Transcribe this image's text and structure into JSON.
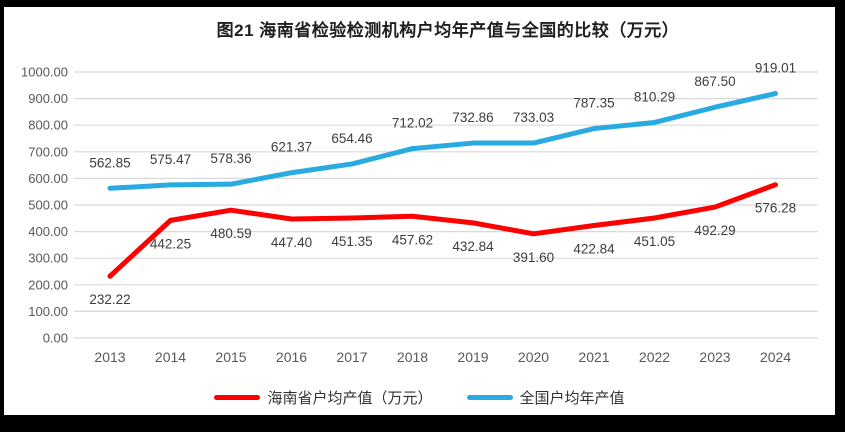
{
  "frame": {
    "border_color": "#000000",
    "background_color": "#ffffff"
  },
  "chart_data": {
    "type": "line",
    "title": "图21  海南省检验检测机构户均年产值与全国的比较（万元）",
    "categories": [
      "2013",
      "2014",
      "2015",
      "2016",
      "2017",
      "2018",
      "2019",
      "2020",
      "2021",
      "2022",
      "2023",
      "2024"
    ],
    "series": [
      {
        "name": "海南省户均产值（万元）",
        "color": "#FF0000",
        "label_position": "below",
        "values": [
          232.22,
          442.25,
          480.59,
          447.4,
          451.35,
          457.62,
          432.84,
          391.6,
          422.84,
          451.05,
          492.29,
          576.28
        ]
      },
      {
        "name": "全国户均年产值",
        "color": "#29ABE2",
        "label_position": "above",
        "values": [
          562.85,
          575.47,
          578.36,
          621.37,
          654.46,
          712.02,
          732.86,
          733.03,
          787.35,
          810.29,
          867.5,
          919.01
        ]
      }
    ],
    "ylim": [
      0,
      1000
    ],
    "ytick_step": 100,
    "ytick_decimals": 2,
    "grid": "horizontal",
    "legend_position": "bottom",
    "colors": {
      "grid_line": "#D9D9D9",
      "axis_text": "#595959",
      "data_label_text": "#3d3d3d"
    }
  }
}
